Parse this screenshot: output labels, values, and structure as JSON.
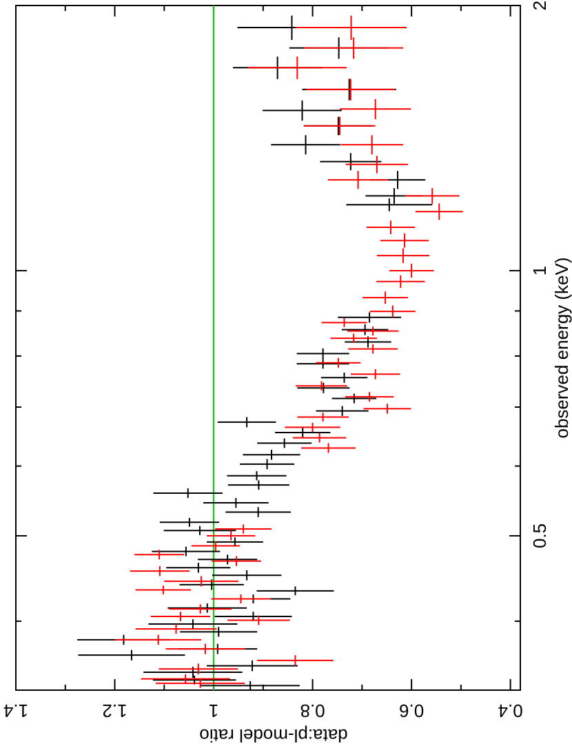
{
  "chart_data": {
    "type": "errorbar",
    "x_label": "observed energy (keV)",
    "y_label": "data:pl-model ratio",
    "xlim": [
      0.334,
      2
    ],
    "xticks": [
      0.5,
      1,
      2
    ],
    "xminor_ticks": [
      0.4,
      0.6,
      0.7,
      0.8,
      0.9
    ],
    "xscale": "log",
    "ylim": [
      0.38,
      1.4
    ],
    "yticks": [
      0.4,
      0.6,
      0.8,
      1,
      1.2,
      1.4
    ],
    "yminor_ticks": [
      0.5,
      0.7,
      0.9,
      1.1,
      1.3
    ],
    "reference_line": {
      "value": 1,
      "color": "#00cc00"
    },
    "series": [
      {
        "color": "#000000",
        "x": [
          1.888,
          1.79,
          1.7,
          1.606,
          1.52,
          1.46,
          1.39,
          1.33,
          1.268,
          1.216,
          1.188,
          0.885,
          0.857,
          0.83,
          0.805,
          0.784,
          0.756,
          0.736,
          0.716,
          0.693,
          0.673,
          0.655,
          0.637,
          0.618,
          0.603,
          0.585,
          0.571,
          0.559,
          0.545,
          0.532,
          0.518,
          0.507,
          0.492,
          0.48,
          0.47,
          0.46,
          0.451,
          0.44,
          0.433,
          0.424,
          0.414,
          0.405,
          0.397,
          0.389,
          0.381,
          0.372,
          0.366,
          0.356,
          0.35,
          0.343,
          0.338
        ],
        "xerr": [
          0.06,
          0.05,
          0.05,
          0.045,
          0.04,
          0.035,
          0.035,
          0.03,
          0.03,
          0.025,
          0.02,
          0.012,
          0.012,
          0.012,
          0.011,
          0.01,
          0.01,
          0.01,
          0.009,
          0.009,
          0.009,
          0.008,
          0.008,
          0.008,
          0.008,
          0.007,
          0.007,
          0.007,
          0.007,
          0.007,
          0.006,
          0.006,
          0.006,
          0.006,
          0.006,
          0.006,
          0.006,
          0.006,
          0.005,
          0.005,
          0.005,
          0.005,
          0.005,
          0.005,
          0.005,
          0.005,
          0.005,
          0.005,
          0.005,
          0.004,
          0.004
        ],
        "values": [
          0.842,
          0.747,
          0.871,
          0.726,
          0.821,
          0.748,
          0.814,
          0.723,
          0.628,
          0.635,
          0.645,
          0.685,
          0.694,
          0.688,
          0.779,
          0.779,
          0.736,
          0.778,
          0.716,
          0.74,
          0.933,
          0.82,
          0.857,
          0.883,
          0.892,
          0.913,
          0.909,
          1.052,
          0.955,
          0.91,
          1.049,
          1.028,
          0.957,
          1.056,
          0.972,
          1.031,
          0.933,
          1.004,
          0.835,
          0.92,
          1.013,
          0.92,
          1.042,
          0.99,
          1.182,
          0.992,
          1.166,
          0.922,
          1.042,
          1.039,
          0.926
        ],
        "yerr": [
          0.11,
          0.1,
          0.09,
          0.095,
          0.08,
          0.07,
          0.07,
          0.062,
          0.056,
          0.058,
          0.087,
          0.064,
          0.047,
          0.047,
          0.053,
          0.053,
          0.047,
          0.053,
          0.045,
          0.053,
          0.059,
          0.056,
          0.055,
          0.058,
          0.055,
          0.06,
          0.062,
          0.07,
          0.066,
          0.066,
          0.06,
          0.073,
          0.057,
          0.069,
          0.06,
          0.065,
          0.07,
          0.065,
          0.078,
          0.075,
          0.08,
          0.078,
          0.09,
          0.078,
          0.094,
          0.08,
          0.108,
          0.092,
          0.1,
          0.084,
          0.1
        ]
      },
      {
        "color": "#ff0000",
        "x": [
          1.888,
          1.79,
          1.7,
          1.606,
          1.526,
          1.46,
          1.39,
          1.32,
          1.268,
          1.216,
          1.167,
          1.12,
          1.082,
          1.04,
          1.0,
          0.972,
          0.932,
          0.899,
          0.873,
          0.854,
          0.838,
          0.815,
          0.786,
          0.763,
          0.74,
          0.719,
          0.697,
          0.682,
          0.664,
          0.646,
          0.629,
          0.509,
          0.5,
          0.487,
          0.476,
          0.468,
          0.456,
          0.444,
          0.434,
          0.424,
          0.413,
          0.405,
          0.401,
          0.392,
          0.381,
          0.372,
          0.361,
          0.353,
          0.344,
          0.34
        ],
        "xerr": [
          0.06,
          0.05,
          0.05,
          0.045,
          0.04,
          0.035,
          0.035,
          0.03,
          0.03,
          0.025,
          0.025,
          0.02,
          0.02,
          0.02,
          0.018,
          0.016,
          0.015,
          0.014,
          0.01,
          0.01,
          0.01,
          0.01,
          0.01,
          0.01,
          0.009,
          0.009,
          0.009,
          0.008,
          0.008,
          0.008,
          0.008,
          0.006,
          0.006,
          0.006,
          0.006,
          0.006,
          0.006,
          0.006,
          0.005,
          0.005,
          0.005,
          0.005,
          0.005,
          0.005,
          0.005,
          0.005,
          0.005,
          0.005,
          0.004,
          0.004
        ],
        "values": [
          0.722,
          0.717,
          0.831,
          0.723,
          0.673,
          0.745,
          0.68,
          0.67,
          0.708,
          0.558,
          0.544,
          0.642,
          0.614,
          0.617,
          0.6,
          0.622,
          0.653,
          0.638,
          0.736,
          0.678,
          0.717,
          0.678,
          0.748,
          0.673,
          0.782,
          0.685,
          0.649,
          0.779,
          0.8,
          0.786,
          0.768,
          0.94,
          0.965,
          0.996,
          1.11,
          0.954,
          1.109,
          1.025,
          1.102,
          0.945,
          1.027,
          1.067,
          0.909,
          1.076,
          1.112,
          1.017,
          0.835,
          1.031,
          1.057,
          1.027
        ],
        "yerr": [
          0.112,
          0.1,
          0.1,
          0.09,
          0.072,
          0.072,
          0.063,
          0.063,
          0.061,
          0.055,
          0.048,
          0.049,
          0.049,
          0.053,
          0.045,
          0.049,
          0.046,
          0.046,
          0.046,
          0.052,
          0.047,
          0.05,
          0.045,
          0.05,
          0.052,
          0.049,
          0.048,
          0.052,
          0.056,
          0.054,
          0.055,
          0.057,
          0.049,
          0.049,
          0.05,
          0.05,
          0.06,
          0.075,
          0.056,
          0.06,
          0.063,
          0.06,
          0.063,
          0.082,
          0.087,
          0.08,
          0.077,
          0.08,
          0.09,
          0.09
        ]
      }
    ]
  }
}
